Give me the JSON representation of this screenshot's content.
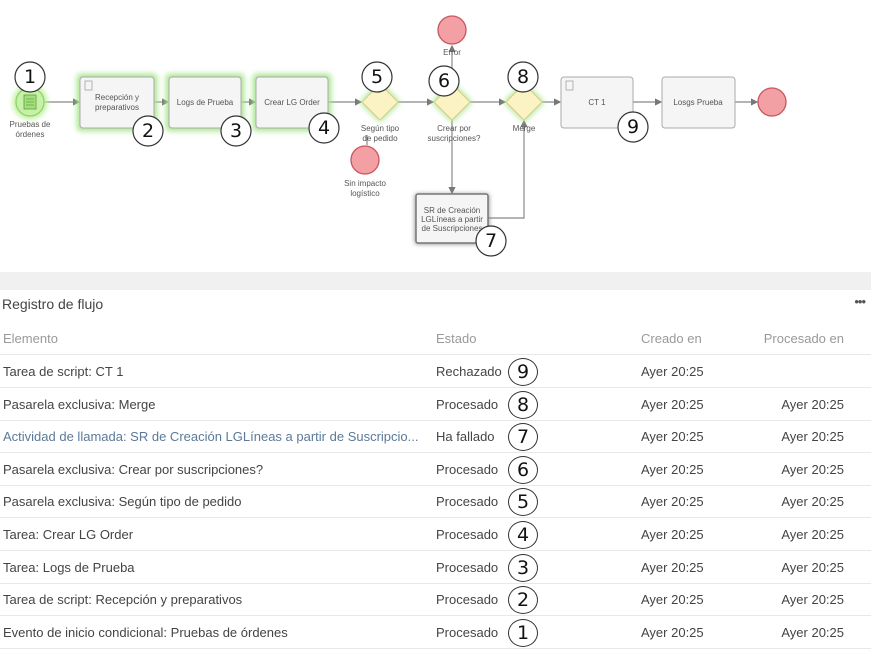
{
  "diagram": {
    "start": {
      "label_line1": "Pruebas de",
      "label_line2": "órdenes",
      "badge": "1"
    },
    "task_recepcion": {
      "line1": "Recepción y",
      "line2": "preparativos",
      "badge": "2"
    },
    "task_logs": {
      "label": "Logs de Prueba",
      "badge": "3"
    },
    "task_crear": {
      "label": "Crear LG Order",
      "badge": "4"
    },
    "gateway_tipo": {
      "line1": "Según tipo",
      "line2": "de pedido",
      "badge": "5"
    },
    "end_sin_impacto": {
      "line1": "Sin impacto",
      "line2": "logístico"
    },
    "end_error": {
      "label": "Error"
    },
    "gateway_crear": {
      "line1": "Crear por",
      "line2": "suscripciones?",
      "badge": "6"
    },
    "gateway_merge": {
      "label": "Merge",
      "badge": "8"
    },
    "call_sr": {
      "line1": "SR de Creación",
      "line2": "LGLíneas a partir",
      "line3": "de Suscripciones",
      "badge": "7"
    },
    "task_ct1": {
      "label": "CT 1",
      "badge": "9"
    },
    "task_logsg": {
      "label": "Losgs Prueba"
    },
    "colors": {
      "active_glow": "#9be07a",
      "gateway_fill": "#fbf3c3",
      "end_fill": "#f3a0a5",
      "end_stroke": "#c8555c",
      "start_fill": "#c6f1a8"
    }
  },
  "panel": {
    "title": "Registro de flujo",
    "more_label": "•••",
    "columns": [
      "Elemento",
      "Estado",
      "Creado en",
      "Procesado en"
    ],
    "rows": [
      {
        "elemento": "Tarea de script: CT 1",
        "estado": "Rechazado",
        "badge": "9",
        "creado": "Ayer 20:25",
        "procesado": ""
      },
      {
        "elemento": "Pasarela exclusiva: Merge",
        "estado": "Procesado",
        "badge": "8",
        "creado": "Ayer 20:25",
        "procesado": "Ayer 20:25"
      },
      {
        "elemento": "Actividad de llamada: SR de Creación LGLíneas a partir de Suscripcio...",
        "estado": "Ha fallado",
        "badge": "7",
        "creado": "Ayer 20:25",
        "procesado": "Ayer 20:25"
      },
      {
        "elemento": "Pasarela exclusiva: Crear por suscripciones?",
        "estado": "Procesado",
        "badge": "6",
        "creado": "Ayer 20:25",
        "procesado": "Ayer 20:25"
      },
      {
        "elemento": "Pasarela exclusiva: Según tipo de pedido",
        "estado": "Procesado",
        "badge": "5",
        "creado": "Ayer 20:25",
        "procesado": "Ayer 20:25"
      },
      {
        "elemento": "Tarea: Crear LG Order",
        "estado": "Procesado",
        "badge": "4",
        "creado": "Ayer 20:25",
        "procesado": "Ayer 20:25"
      },
      {
        "elemento": "Tarea: Logs de Prueba",
        "estado": "Procesado",
        "badge": "3",
        "creado": "Ayer 20:25",
        "procesado": "Ayer 20:25"
      },
      {
        "elemento": "Tarea de script: Recepción y preparativos",
        "estado": "Procesado",
        "badge": "2",
        "creado": "Ayer 20:25",
        "procesado": "Ayer 20:25"
      },
      {
        "elemento": "Evento de inicio condicional: Pruebas de órdenes",
        "estado": "Procesado",
        "badge": "1",
        "creado": "Ayer 20:25",
        "procesado": "Ayer 20:25"
      }
    ]
  }
}
